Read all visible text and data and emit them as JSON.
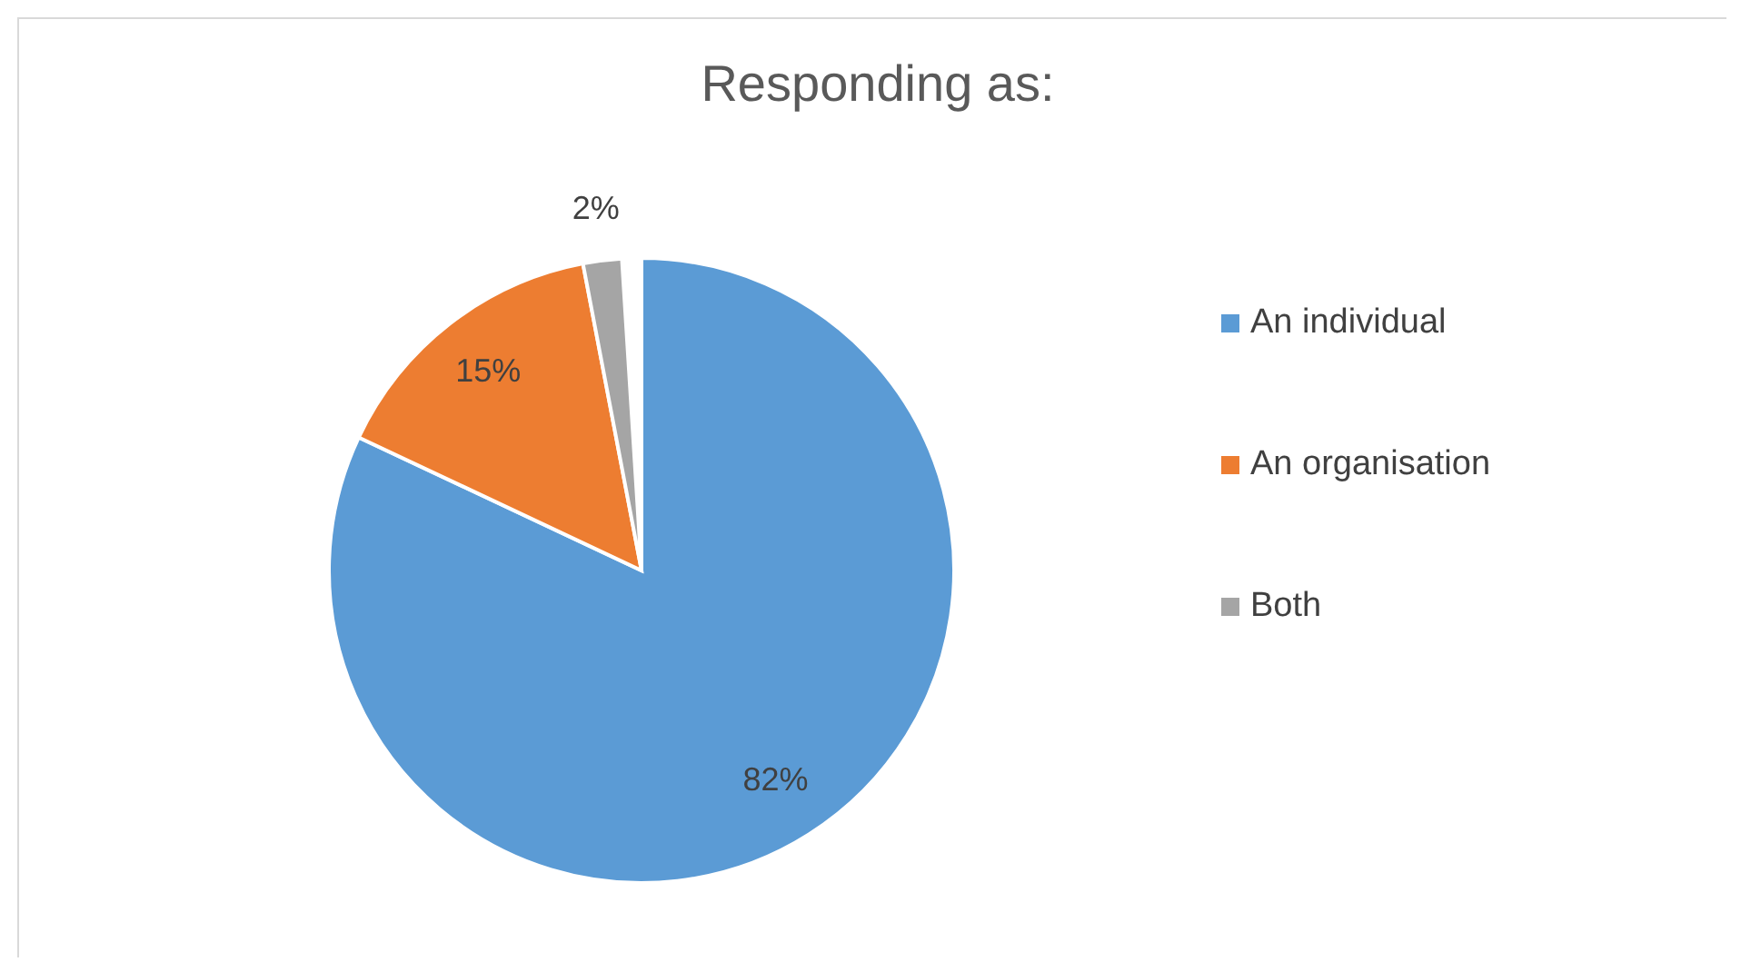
{
  "chart_data": {
    "type": "pie",
    "title": "Responding as:",
    "categories": [
      "An individual",
      "An organisation",
      "Both"
    ],
    "values": [
      82,
      15,
      2
    ],
    "colors": [
      "#5b9bd5",
      "#ed7d31",
      "#a5a5a5"
    ],
    "value_labels": [
      "82%",
      "15%",
      "2%"
    ],
    "legend": "right"
  }
}
